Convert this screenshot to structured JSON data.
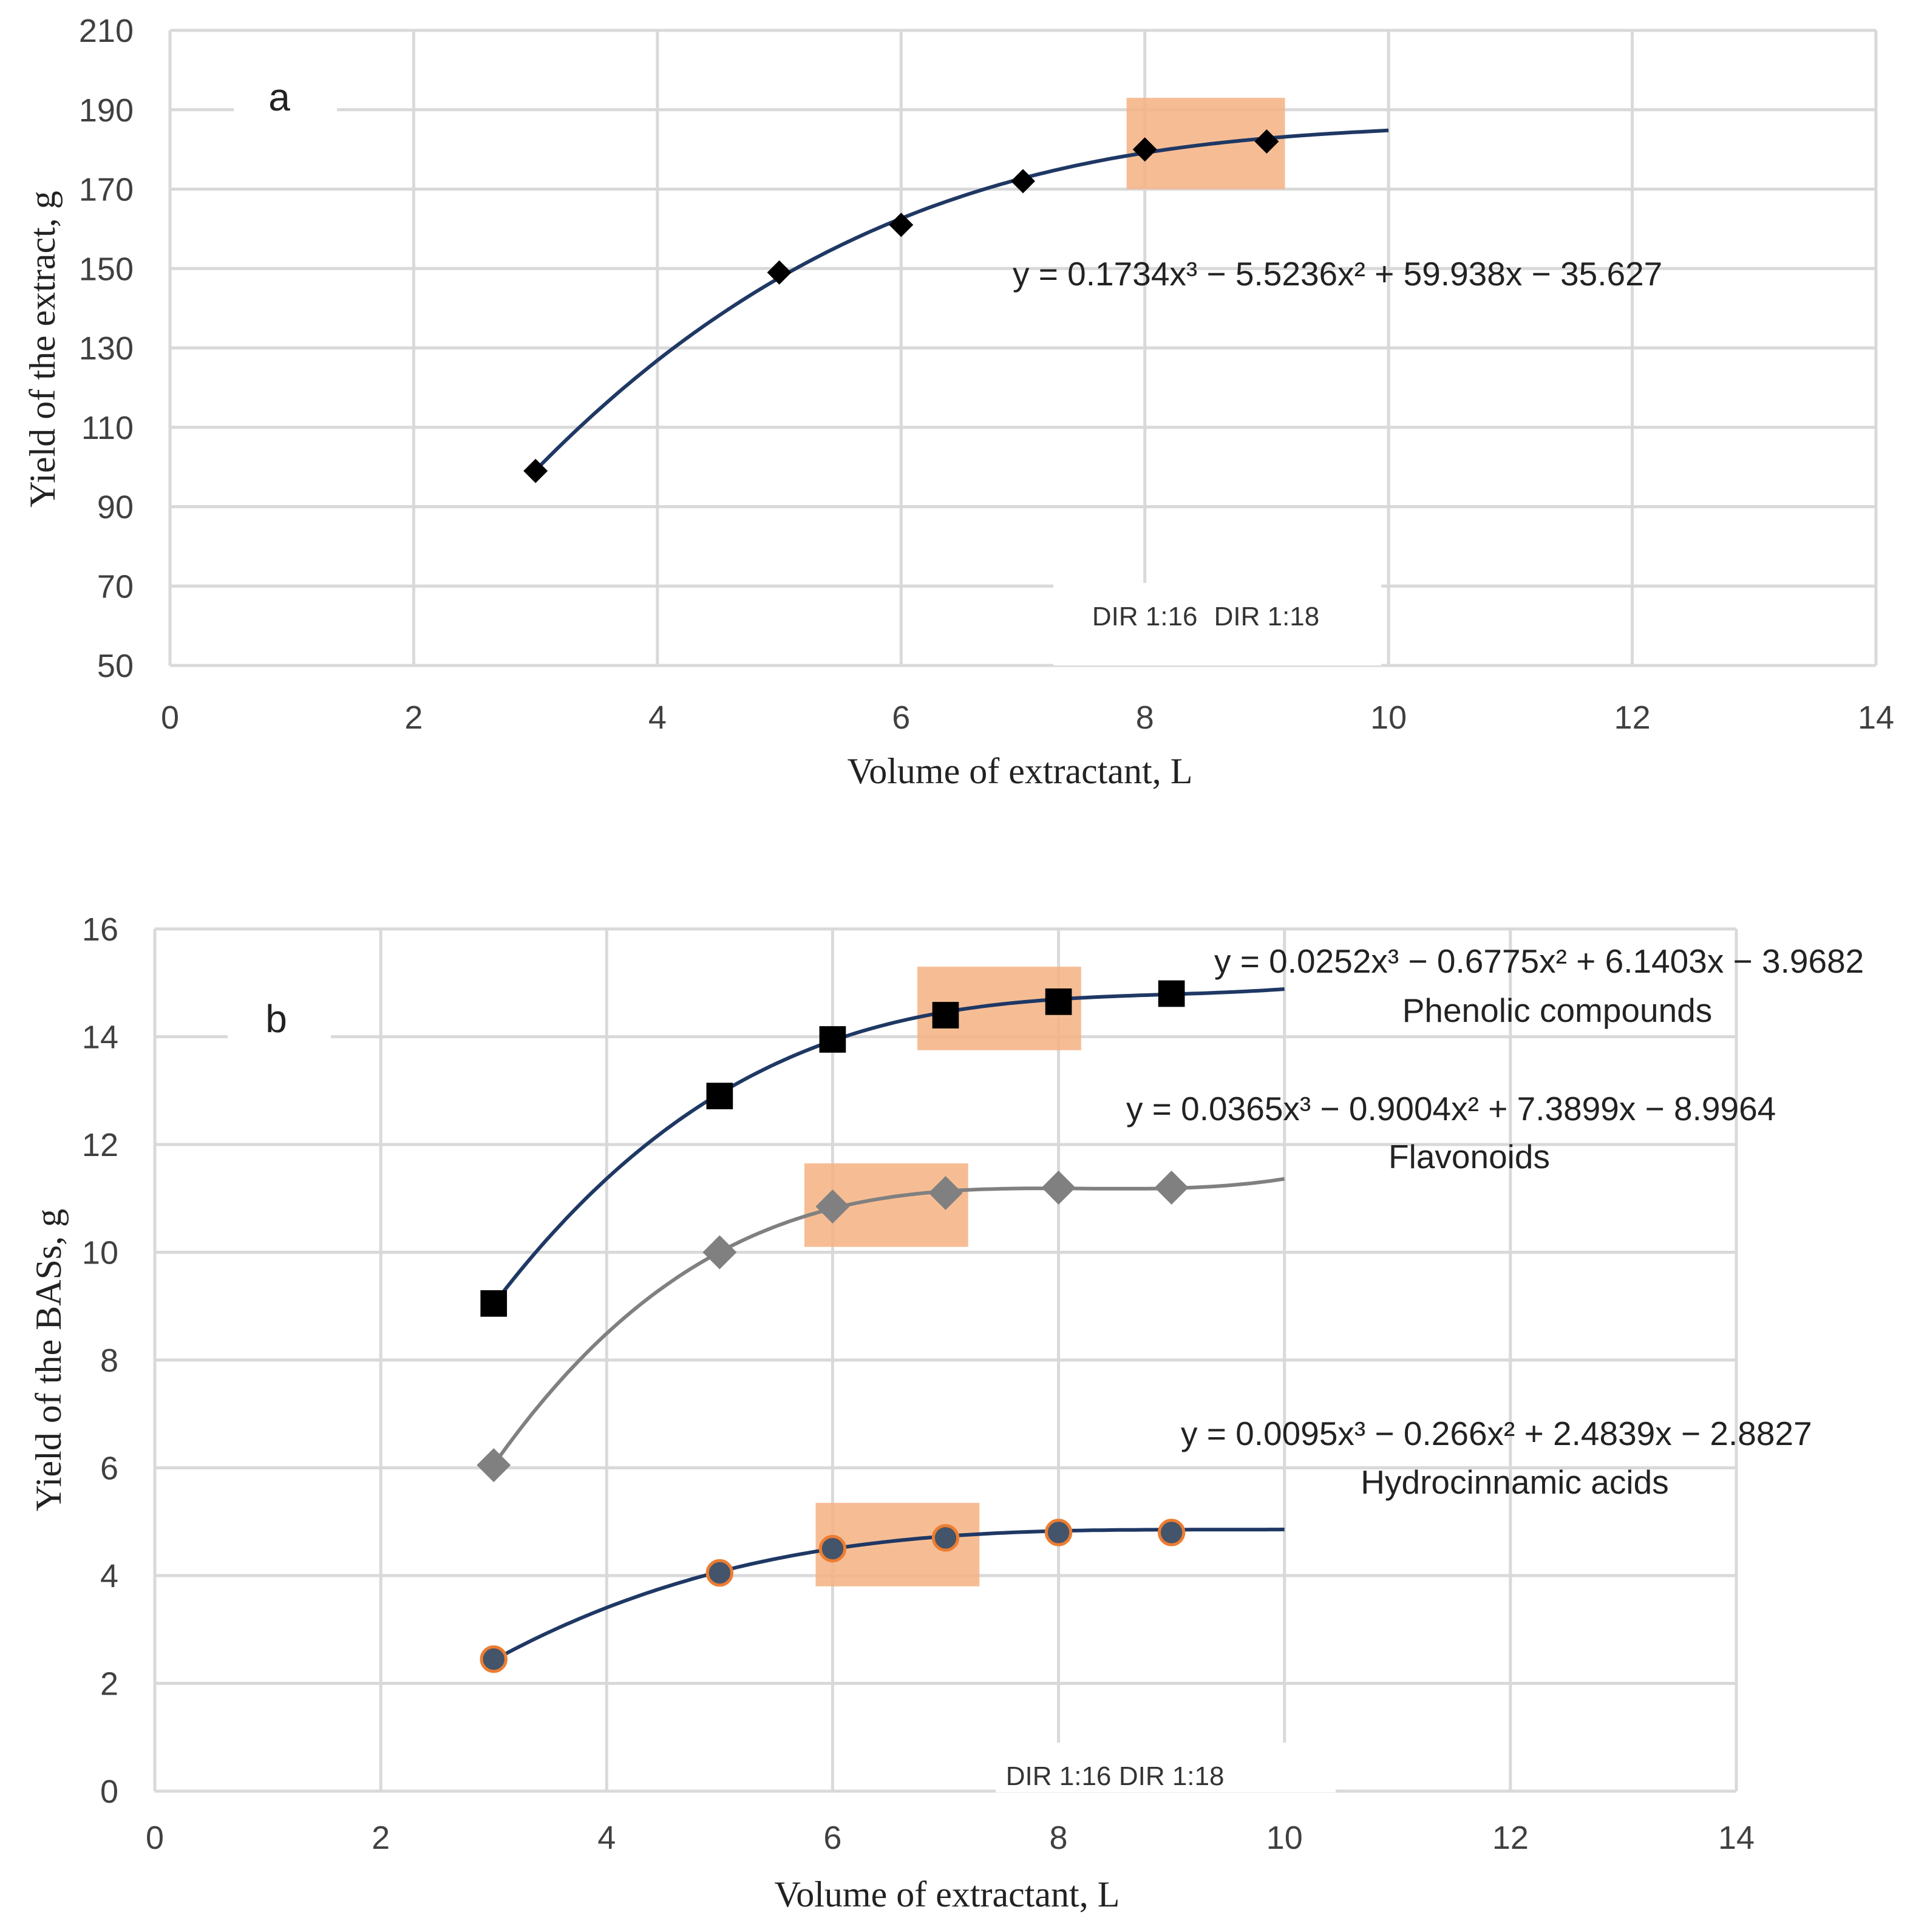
{
  "chart_data": [
    {
      "type": "scatter",
      "panel_label": "a",
      "xlabel": "Volume  of extractant,  L",
      "ylabel": "Yield  of the extract, g",
      "xlim": [
        0,
        14
      ],
      "ylim": [
        50,
        210
      ],
      "xticks": [
        0,
        2,
        4,
        6,
        8,
        10,
        12,
        14
      ],
      "yticks": [
        50,
        70,
        90,
        110,
        130,
        150,
        170,
        190,
        210
      ],
      "grid": true,
      "series": [
        {
          "name": "Yield of the extract",
          "x": [
            3,
            5,
            6,
            7,
            8,
            9
          ],
          "y": [
            99,
            149,
            161,
            172,
            180,
            182
          ],
          "marker": "diamond",
          "color": "#000000",
          "trend_color": "#1f3864",
          "trend_x_range": [
            3,
            10
          ],
          "trend_coeffs": [
            0.1734,
            -5.5236,
            59.938,
            -35.627
          ],
          "equation": "y = 0.1734x³ − 5.5236x² + 59.938x − 35.627"
        }
      ],
      "highlights": [
        {
          "x": [
            7.85,
            9.15
          ],
          "y": [
            170,
            193
          ]
        }
      ],
      "annotations": [
        "DIR 1:16",
        "DIR 1:18"
      ],
      "annotation_x": [
        8,
        9
      ]
    },
    {
      "type": "scatter",
      "panel_label": "b",
      "xlabel": "Volume  of extractant,  L",
      "ylabel": "Yield  of the BASs, g",
      "xlim": [
        0,
        14
      ],
      "ylim": [
        0,
        16
      ],
      "xticks": [
        0,
        2,
        4,
        6,
        8,
        10,
        12,
        14
      ],
      "yticks": [
        0,
        2,
        4,
        6,
        8,
        10,
        12,
        14,
        16
      ],
      "grid": true,
      "series": [
        {
          "name": "Phenolic compounds",
          "x": [
            3,
            5,
            6,
            7,
            8,
            9
          ],
          "y": [
            9.05,
            12.9,
            13.95,
            14.4,
            14.65,
            14.8
          ],
          "marker": "square",
          "color": "#000000",
          "trend_color": "#1f3864",
          "trend_x_range": [
            3,
            10
          ],
          "trend_coeffs": [
            0.0252,
            -0.6775,
            6.1403,
            -3.9682
          ],
          "equation": "y = 0.0252x³ − 0.6775x² + 6.1403x − 3.9682"
        },
        {
          "name": "Flavonoids",
          "x": [
            3,
            5,
            6,
            7,
            8,
            9
          ],
          "y": [
            6.05,
            10.0,
            10.85,
            11.1,
            11.2,
            11.2
          ],
          "marker": "diamond",
          "color": "#808080",
          "trend_color": "#808080",
          "trend_x_range": [
            3,
            10
          ],
          "trend_coeffs": [
            0.0365,
            -0.9004,
            7.3899,
            -8.9964
          ],
          "equation": "y = 0.0365x³ − 0.9004x² + 7.3899x − 8.9964"
        },
        {
          "name": "Hydrocinnamic acids",
          "x": [
            3,
            5,
            6,
            7,
            8,
            9
          ],
          "y": [
            2.45,
            4.05,
            4.5,
            4.7,
            4.8,
            4.8
          ],
          "marker": "circle",
          "color": "#44546a",
          "edge_color": "#ed7d31",
          "trend_color": "#1f3864",
          "trend_x_range": [
            3,
            10
          ],
          "trend_coeffs": [
            0.0095,
            -0.266,
            2.4839,
            -2.8827
          ],
          "equation": "y = 0.0095x³ − 0.266x² + 2.4839x − 2.8827"
        }
      ],
      "highlights": [
        {
          "x": [
            6.75,
            8.2
          ],
          "y": [
            13.75,
            15.3
          ]
        },
        {
          "x": [
            5.75,
            7.2
          ],
          "y": [
            10.1,
            11.65
          ]
        },
        {
          "x": [
            5.85,
            7.3
          ],
          "y": [
            3.8,
            5.35
          ]
        }
      ],
      "annotations": [
        "DIR 1:16",
        "DIR 1:18"
      ],
      "annotation_x": [
        8,
        9
      ]
    }
  ],
  "colors": {
    "highlight": "#f4b183",
    "grid": "#d9d9d9"
  }
}
